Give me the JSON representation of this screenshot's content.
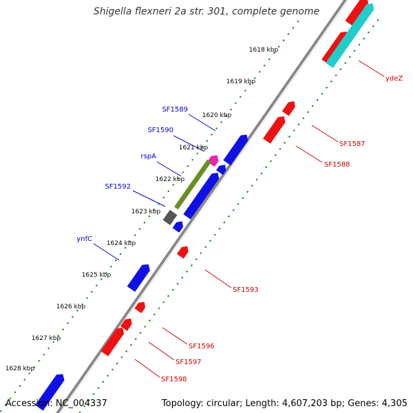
{
  "title": "Shigella flexneri 2a str. 301, complete genome",
  "footer": {
    "accession": "Accession: NC_004337",
    "summary": "Topology: circular; Length: 4,607,203 bp; Genes: 4,305"
  },
  "tick_labels": [
    "1618 kbp",
    "1619 kbp",
    "1620 kbp",
    "1621 kbp",
    "1622 kbp",
    "1623 kbp",
    "1624 kbp",
    "1625 kbp",
    "1626 kbp",
    "1627 kbp",
    "1628 kbp"
  ],
  "gene_labels": {
    "forward": [
      "SF1589",
      "SF1590",
      "rspA",
      "SF1592",
      "ynfC"
    ],
    "reverse": [
      "ydeZ",
      "SF1587",
      "SF1588",
      "SF1593",
      "SF1596",
      "SF1597",
      "SF1598"
    ]
  },
  "colors": {
    "forward": "#1010e6",
    "reverse": "#ee1111",
    "magenta": "#ee22aa",
    "olive": "#6b8e23",
    "dark_grey": "#555555",
    "cyan": "#22cccc",
    "backbone": "#888888",
    "tick": "#1a8a1a",
    "forward_label": "#0000cc",
    "reverse_label": "#cc0000"
  }
}
